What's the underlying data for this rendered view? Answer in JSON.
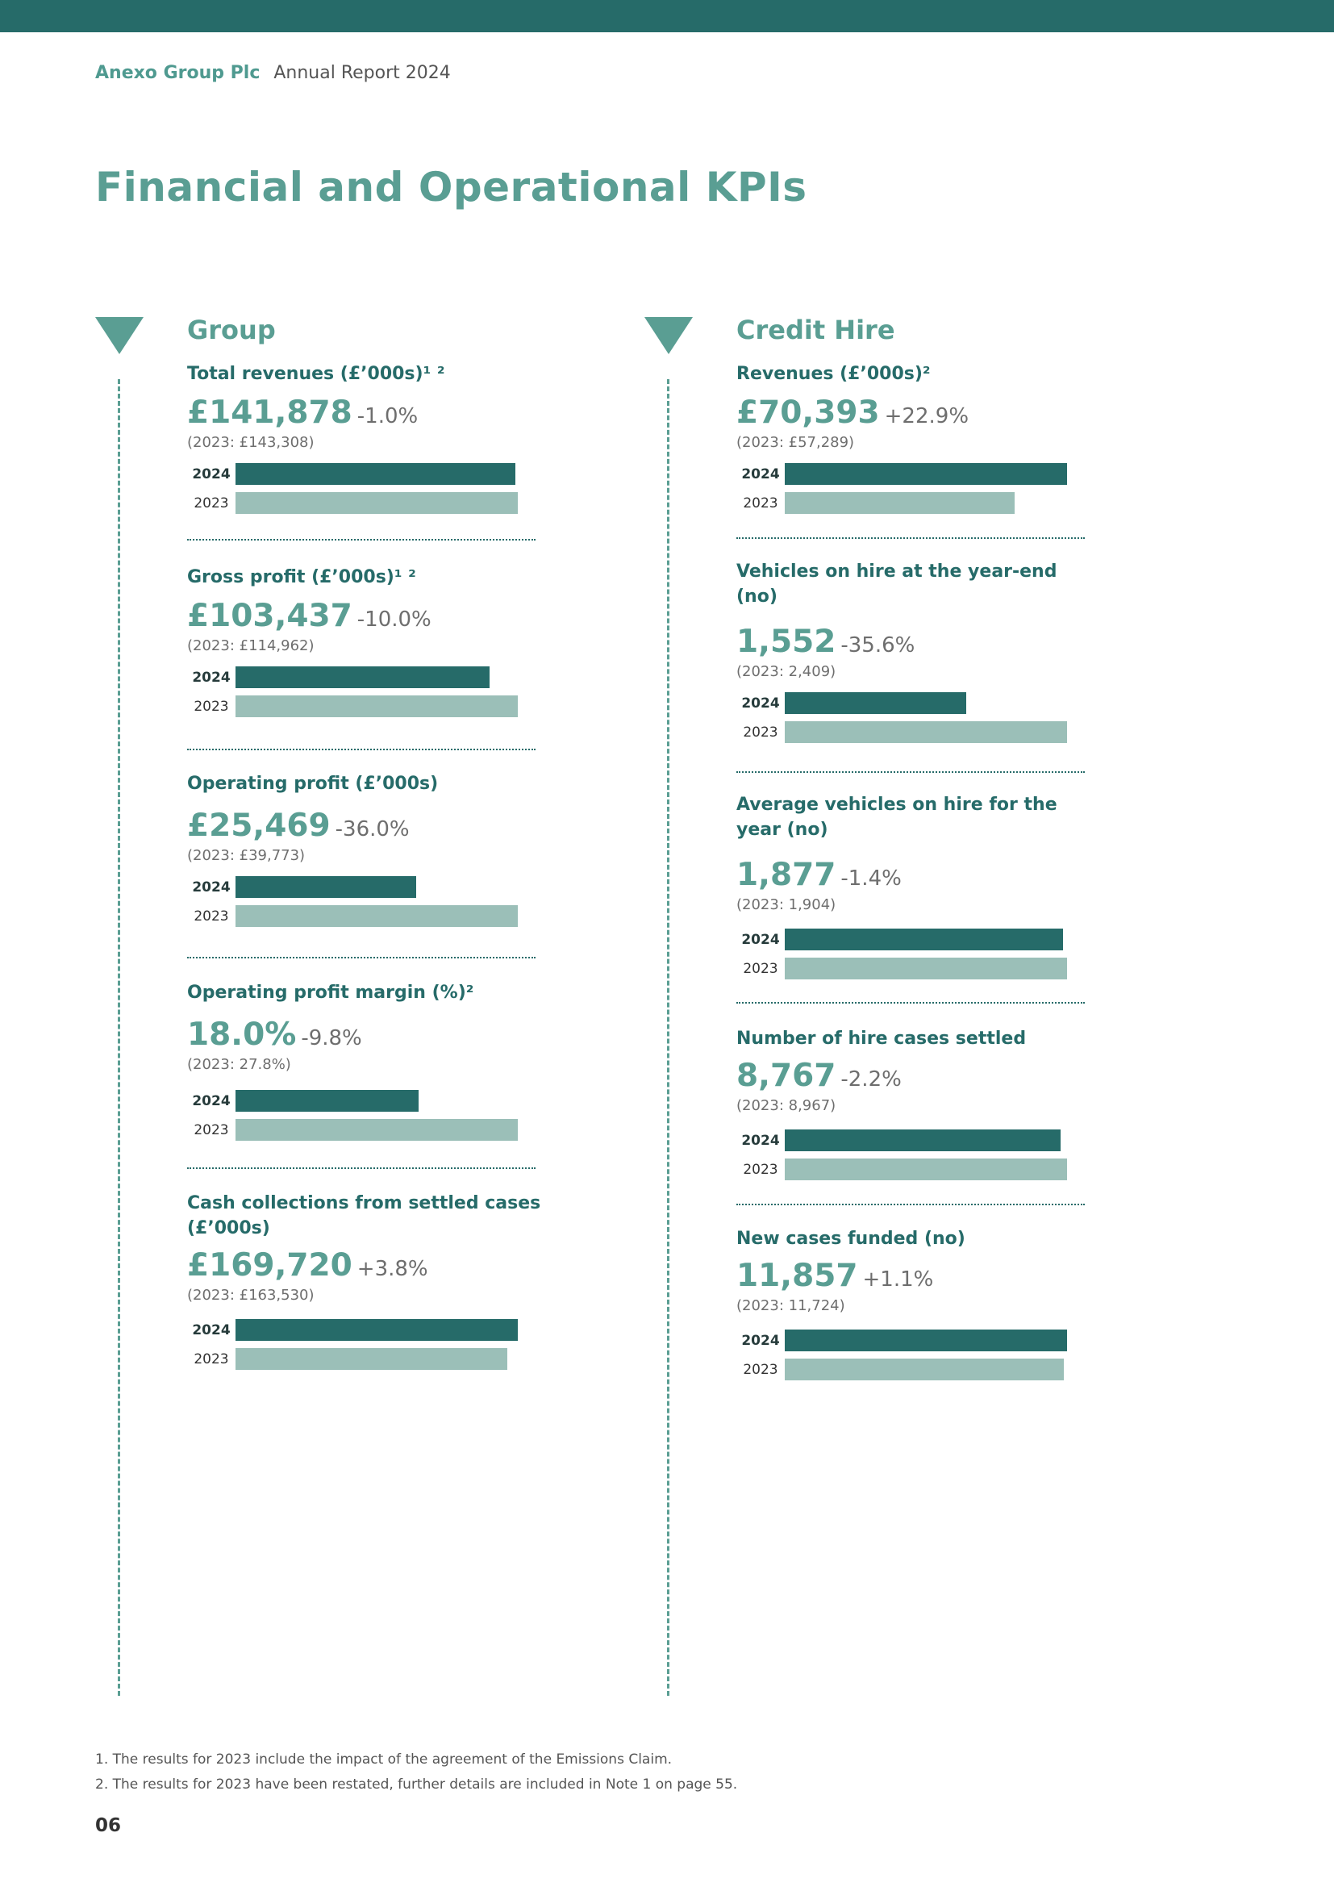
{
  "header": {
    "brand": "Anexo Group Plc",
    "subtitle": "Annual Report 2024"
  },
  "page_title": "Financial and Operational KPIs",
  "bar_labels": {
    "current": "2024",
    "prior": "2023"
  },
  "colors": {
    "accent": "#5a9e93",
    "dark": "#266b69",
    "light": "#9bbfb8"
  },
  "group": {
    "title": "Group",
    "kpis": [
      {
        "title": "Total revenues (£’000s)¹ ²",
        "value": "£141,878",
        "change": "-1.0%",
        "prior": "(2023: £143,308)",
        "v2024": 141878,
        "v2023": 143308
      },
      {
        "title": "Gross profit (£’000s)¹ ²",
        "value": "£103,437",
        "change": "-10.0%",
        "prior": "(2023: £114,962)",
        "v2024": 103437,
        "v2023": 114962
      },
      {
        "title": "Operating profit (£’000s)",
        "value": "£25,469",
        "change": "-36.0%",
        "prior": "(2023: £39,773)",
        "v2024": 25469,
        "v2023": 39773
      },
      {
        "title": "Operating profit margin (%)²",
        "value": "18.0%",
        "change": "-9.8%",
        "prior": "(2023: 27.8%)",
        "v2024": 18.0,
        "v2023": 27.8
      },
      {
        "title": "Cash collections from settled cases (£’000s)",
        "value": "£169,720",
        "change": "+3.8%",
        "prior": "(2023: £163,530)",
        "v2024": 169720,
        "v2023": 163530
      }
    ]
  },
  "credit_hire": {
    "title": "Credit Hire",
    "kpis": [
      {
        "title": "Revenues (£’000s)²",
        "value": "£70,393",
        "change": "+22.9%",
        "prior": "(2023: £57,289)",
        "v2024": 70393,
        "v2023": 57289
      },
      {
        "title": "Vehicles on hire at the year-end (no)",
        "value": "1,552",
        "change": "-35.6%",
        "prior": "(2023: 2,409)",
        "v2024": 1552,
        "v2023": 2409
      },
      {
        "title": "Average vehicles on hire for the year (no)",
        "value": "1,877",
        "change": "-1.4%",
        "prior": "(2023: 1,904)",
        "v2024": 1877,
        "v2023": 1904
      },
      {
        "title": "Number of hire cases settled",
        "value": "8,767",
        "change": "-2.2%",
        "prior": "(2023: 8,967)",
        "v2024": 8767,
        "v2023": 8967
      },
      {
        "title": "New cases funded (no)",
        "value": "11,857",
        "change": "+1.1%",
        "prior": "(2023: 11,724)",
        "v2024": 11857,
        "v2023": 11724
      }
    ]
  },
  "footnotes": [
    "1.  The results for 2023 include the impact of the agreement of the Emissions Claim.",
    "2.  The results for 2023 have been restated, further details are included in Note 1 on page 55."
  ],
  "page_number": "06"
}
